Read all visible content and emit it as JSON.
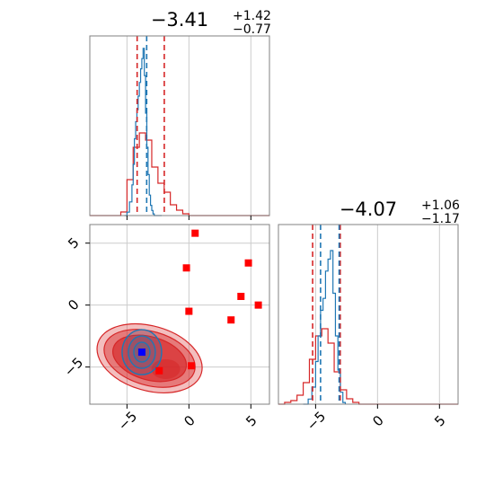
{
  "chart_data": {
    "type": "corner",
    "parameters": [
      {
        "title_value": "−3.41",
        "title_plus": "+1.42",
        "title_minus": "−0.77"
      },
      {
        "title_value": "−4.07",
        "title_plus": "+1.06",
        "title_minus": "−1.17"
      }
    ],
    "xlim": [
      -8,
      6.5
    ],
    "ylim": [
      -8,
      6.5
    ],
    "ticks": [
      -5,
      0,
      5
    ],
    "tick_labels": [
      "−5",
      "0",
      "5"
    ],
    "grid": true,
    "colors": {
      "blue": "#1f77b4",
      "red": "#d62728",
      "marker_red": "#ff0000",
      "marker_blue": "#0000ff",
      "grid": "#cccccc",
      "frame": "#808080"
    },
    "marginal_x": {
      "bins": [
        -8,
        -7.5,
        -7,
        -6.5,
        -6,
        -5.5,
        -5,
        -4.5,
        -4,
        -3.5,
        -3,
        -2.5,
        -2,
        -1.5,
        -1,
        -0.5,
        0,
        0.5,
        1,
        1.5,
        2,
        2.5,
        3,
        3.5,
        4,
        4.5,
        5,
        5.5,
        6,
        6.5
      ],
      "red_counts": [
        0,
        0,
        0,
        0,
        0,
        0.02,
        0.2,
        0.38,
        0.46,
        0.42,
        0.27,
        0.18,
        0.13,
        0.06,
        0.03,
        0.01,
        0,
        0,
        0,
        0,
        0,
        0,
        0,
        0,
        0,
        0,
        0,
        0,
        0
      ],
      "blue_x": [
        -5.2,
        -5.0,
        -4.8,
        -4.6,
        -4.5,
        -4.4,
        -4.3,
        -4.2,
        -4.1,
        -4.0,
        -3.9,
        -3.8,
        -3.7,
        -3.6,
        -3.5,
        -3.4,
        -3.3,
        -3.2,
        -3.1,
        -3.0,
        -2.9,
        -2.8,
        -2.6,
        -2.4,
        -2.2
      ],
      "blue_y": [
        0,
        0.02,
        0.08,
        0.18,
        0.3,
        0.45,
        0.55,
        0.62,
        0.7,
        0.78,
        0.86,
        0.92,
        0.98,
        0.82,
        0.6,
        0.4,
        0.24,
        0.12,
        0.06,
        0.03,
        0.01,
        0,
        0,
        0,
        0
      ],
      "red_quantiles": [
        -4.18,
        -1.99
      ],
      "blue_quantiles": [
        -3.41
      ]
    },
    "marginal_y": {
      "bins": [
        -8,
        -7.5,
        -7,
        -6.5,
        -6,
        -5.5,
        -5,
        -4.5,
        -4,
        -3.5,
        -3,
        -2.5,
        -2,
        -1.5,
        -1,
        -0.5,
        0,
        0.5,
        1,
        1.5,
        2,
        2.5,
        3,
        3.5,
        4,
        4.5,
        5,
        5.5,
        6,
        6.5
      ],
      "red_counts": [
        0,
        0.01,
        0.02,
        0.05,
        0.12,
        0.25,
        0.38,
        0.42,
        0.34,
        0.18,
        0.08,
        0.03,
        0.01,
        0,
        0,
        0,
        0,
        0,
        0,
        0,
        0,
        0,
        0,
        0,
        0,
        0,
        0,
        0,
        0
      ],
      "blue_x": [
        -6.0,
        -5.6,
        -5.3,
        -5.0,
        -4.8,
        -4.6,
        -4.4,
        -4.2,
        -4.0,
        -3.8,
        -3.6,
        -3.4,
        -3.2,
        -3.0,
        -2.8,
        -2.6
      ],
      "blue_y": [
        0,
        0.03,
        0.1,
        0.25,
        0.4,
        0.55,
        0.62,
        0.78,
        0.85,
        0.9,
        0.65,
        0.4,
        0.2,
        0.07,
        0.01,
        0
      ],
      "red_quantiles": [
        -5.24,
        -3.01
      ],
      "blue_quantiles": [
        -4.6,
        -3.1
      ]
    },
    "joint": {
      "red_squares": [
        [
          0.5,
          5.8
        ],
        [
          -0.2,
          3.0
        ],
        [
          4.8,
          3.4
        ],
        [
          4.2,
          0.7
        ],
        [
          5.6,
          0.0
        ],
        [
          0.0,
          -0.5
        ],
        [
          3.4,
          -1.2
        ],
        [
          0.2,
          -4.9
        ],
        [
          -2.4,
          -5.3
        ],
        [
          -3.8,
          -3.8
        ]
      ],
      "blue_square": [
        -3.8,
        -3.8
      ]
    }
  }
}
